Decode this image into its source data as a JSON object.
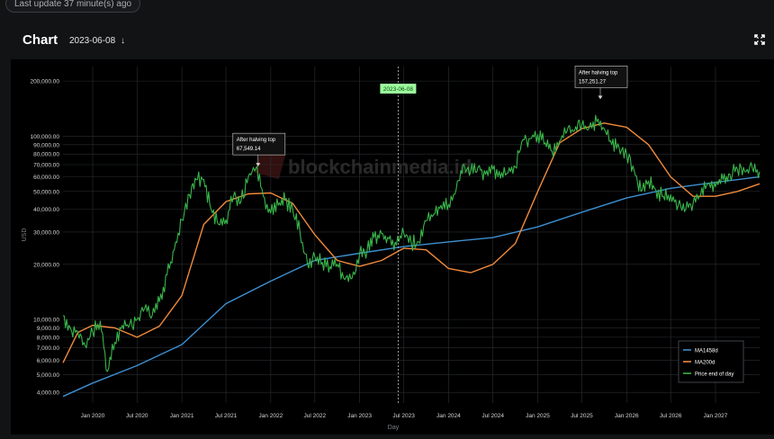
{
  "header": {
    "last_update": "Last update 37 minute(s) ago",
    "title": "Chart",
    "selected_date": "2023-06-08"
  },
  "icons": {
    "date_arrow": "arrow-down-icon",
    "expand": "expand-icon"
  },
  "chart_data": {
    "type": "line",
    "title": "",
    "xlabel": "Day",
    "ylabel": "USD",
    "yscale": "log",
    "ylim": [
      3500,
      240000
    ],
    "xlim": [
      "2019-09-01",
      "2027-07-01"
    ],
    "grid": true,
    "legend_position": "bottom-right",
    "watermark": "blockchainmedia.id",
    "x_ticks": [
      "Jan 2020",
      "Jul 2020",
      "Jan 2021",
      "Jul 2021",
      "Jan 2022",
      "Jul 2022",
      "Jan 2023",
      "Jul 2023",
      "Jan 2024",
      "Jul 2024",
      "Jan 2025",
      "Jul 2025",
      "Jan 2026",
      "Jul 2026",
      "Jan 2027"
    ],
    "x_tick_dates": [
      "2020-01-01",
      "2020-07-01",
      "2021-01-01",
      "2021-07-01",
      "2022-01-01",
      "2022-07-01",
      "2023-01-01",
      "2023-07-01",
      "2024-01-01",
      "2024-07-01",
      "2025-01-01",
      "2025-07-01",
      "2026-01-01",
      "2026-07-01",
      "2027-01-01"
    ],
    "y_ticks": [
      {
        "label": "200,000.00",
        "value": 200000
      },
      {
        "label": "100,000.00",
        "value": 100000
      },
      {
        "label": "90,000.00",
        "value": 90000
      },
      {
        "label": "80,000.00",
        "value": 80000
      },
      {
        "label": "70,000.00",
        "value": 70000
      },
      {
        "label": "60,000.00",
        "value": 60000
      },
      {
        "label": "50,000.00",
        "value": 50000
      },
      {
        "label": "40,000.00",
        "value": 40000
      },
      {
        "label": "30,000.00",
        "value": 30000
      },
      {
        "label": "20,000.00",
        "value": 20000
      },
      {
        "label": "10,000.00",
        "value": 10000
      },
      {
        "label": "9,000.00",
        "value": 9000
      },
      {
        "label": "8,000.00",
        "value": 8000
      },
      {
        "label": "7,000.00",
        "value": 7000
      },
      {
        "label": "6,000.00",
        "value": 6000
      },
      {
        "label": "5,000.00",
        "value": 5000
      },
      {
        "label": "4,000.00",
        "value": 4000
      }
    ],
    "current_date_marker": {
      "date": "2023-06-08",
      "label": "2023-06-08"
    },
    "annotations": [
      {
        "title": "After halving top",
        "value_label": "67,549.14",
        "date": "2021-11-10",
        "value": 67549.14
      },
      {
        "title": "After halving top",
        "value_label": "157,251.27",
        "date": "2025-09-15",
        "value": 157251.27
      }
    ],
    "series": [
      {
        "name": "MA1458d",
        "color": "#3d8fd1",
        "x": [
          "2019-09-01",
          "2020-01-01",
          "2020-07-01",
          "2021-01-01",
          "2021-07-01",
          "2022-01-01",
          "2022-07-01",
          "2023-01-01",
          "2023-07-01",
          "2024-01-01",
          "2024-07-01",
          "2025-01-01",
          "2025-07-01",
          "2026-01-01",
          "2026-07-01",
          "2027-01-01",
          "2027-07-01"
        ],
        "y": [
          3800,
          4500,
          5600,
          7300,
          12200,
          16200,
          21000,
          23000,
          25000,
          26500,
          28000,
          32000,
          38500,
          46000,
          52000,
          56000,
          60000
        ]
      },
      {
        "name": "MA200d",
        "color": "#f08a3c",
        "x": [
          "2019-09-01",
          "2019-11-01",
          "2020-01-01",
          "2020-04-01",
          "2020-07-01",
          "2020-10-01",
          "2021-01-01",
          "2021-04-01",
          "2021-07-01",
          "2021-10-01",
          "2022-01-01",
          "2022-04-01",
          "2022-07-01",
          "2022-10-01",
          "2023-01-01",
          "2023-04-01",
          "2023-07-01",
          "2023-10-01",
          "2024-01-01",
          "2024-04-01",
          "2024-07-01",
          "2024-10-01",
          "2025-01-01",
          "2025-04-01",
          "2025-07-01",
          "2025-10-01",
          "2026-01-01",
          "2026-04-01",
          "2026-07-01",
          "2026-10-01",
          "2027-01-01",
          "2027-04-01",
          "2027-07-01"
        ],
        "y": [
          5800,
          8500,
          9300,
          9000,
          8000,
          9200,
          13500,
          33000,
          44000,
          48500,
          49000,
          43000,
          29000,
          21000,
          19500,
          21000,
          24500,
          24000,
          19000,
          18000,
          20000,
          26000,
          50000,
          92000,
          110000,
          118000,
          112000,
          90000,
          60000,
          47000,
          47000,
          50000,
          55000
        ]
      },
      {
        "name": "Price end of day",
        "color": "#39b54a",
        "x": [
          "2019-09-01",
          "2019-10-01",
          "2019-11-01",
          "2019-12-01",
          "2020-01-01",
          "2020-02-01",
          "2020-03-01",
          "2020-04-01",
          "2020-05-01",
          "2020-06-01",
          "2020-07-01",
          "2020-08-01",
          "2020-09-01",
          "2020-10-01",
          "2020-11-01",
          "2020-12-01",
          "2021-01-01",
          "2021-02-01",
          "2021-03-01",
          "2021-04-01",
          "2021-05-01",
          "2021-06-01",
          "2021-07-01",
          "2021-08-01",
          "2021-09-01",
          "2021-10-01",
          "2021-11-01",
          "2021-12-01",
          "2022-01-01",
          "2022-02-01",
          "2022-03-01",
          "2022-04-01",
          "2022-05-01",
          "2022-06-01",
          "2022-07-01",
          "2022-08-01",
          "2022-09-01",
          "2022-10-01",
          "2022-11-01",
          "2022-12-01",
          "2023-01-01",
          "2023-02-01",
          "2023-03-01",
          "2023-04-01",
          "2023-05-01",
          "2023-06-01",
          "2023-07-01",
          "2023-08-01",
          "2023-09-01",
          "2023-10-01",
          "2023-11-01",
          "2023-12-01",
          "2024-01-01",
          "2024-02-01",
          "2024-03-01",
          "2024-04-01",
          "2024-05-01",
          "2024-06-01",
          "2024-07-01",
          "2024-08-01",
          "2024-09-01",
          "2024-10-01",
          "2024-11-01",
          "2024-12-01",
          "2025-01-01",
          "2025-02-01",
          "2025-03-01",
          "2025-04-01",
          "2025-05-01",
          "2025-06-01",
          "2025-07-01",
          "2025-08-01",
          "2025-09-01",
          "2025-10-01",
          "2025-11-01",
          "2025-12-01",
          "2026-01-01",
          "2026-02-01",
          "2026-03-01",
          "2026-04-01",
          "2026-05-01",
          "2026-06-01",
          "2026-07-01",
          "2026-08-01",
          "2026-09-01",
          "2026-10-01",
          "2026-11-01",
          "2026-12-01",
          "2027-01-01",
          "2027-02-01",
          "2027-03-01",
          "2027-04-01",
          "2027-05-01",
          "2027-06-01",
          "2027-07-01"
        ],
        "y": [
          10500,
          9000,
          8500,
          7200,
          8500,
          9800,
          5200,
          7500,
          9300,
          9400,
          10000,
          11500,
          10500,
          12500,
          17500,
          24000,
          35000,
          48000,
          58000,
          58000,
          40000,
          33000,
          35000,
          47000,
          44000,
          60000,
          67000,
          47000,
          38000,
          42000,
          45000,
          40000,
          30000,
          20000,
          22000,
          20500,
          19500,
          20000,
          16500,
          16800,
          23000,
          24000,
          28000,
          29500,
          27500,
          25500,
          29500,
          26000,
          26500,
          34500,
          37500,
          42000,
          42500,
          51000,
          70000,
          64000,
          68000,
          62000,
          66000,
          59000,
          63000,
          68000,
          96000,
          97000,
          102000,
          92000,
          83000,
          94000,
          106000,
          107000,
          115000,
          112000,
          120000,
          110000,
          90000,
          87000,
          80000,
          65000,
          50000,
          57000,
          51000,
          47000,
          48000,
          42000,
          40000,
          43000,
          48000,
          55000,
          53000,
          58000,
          62000,
          66000,
          64000,
          67000,
          64000
        ]
      }
    ]
  }
}
